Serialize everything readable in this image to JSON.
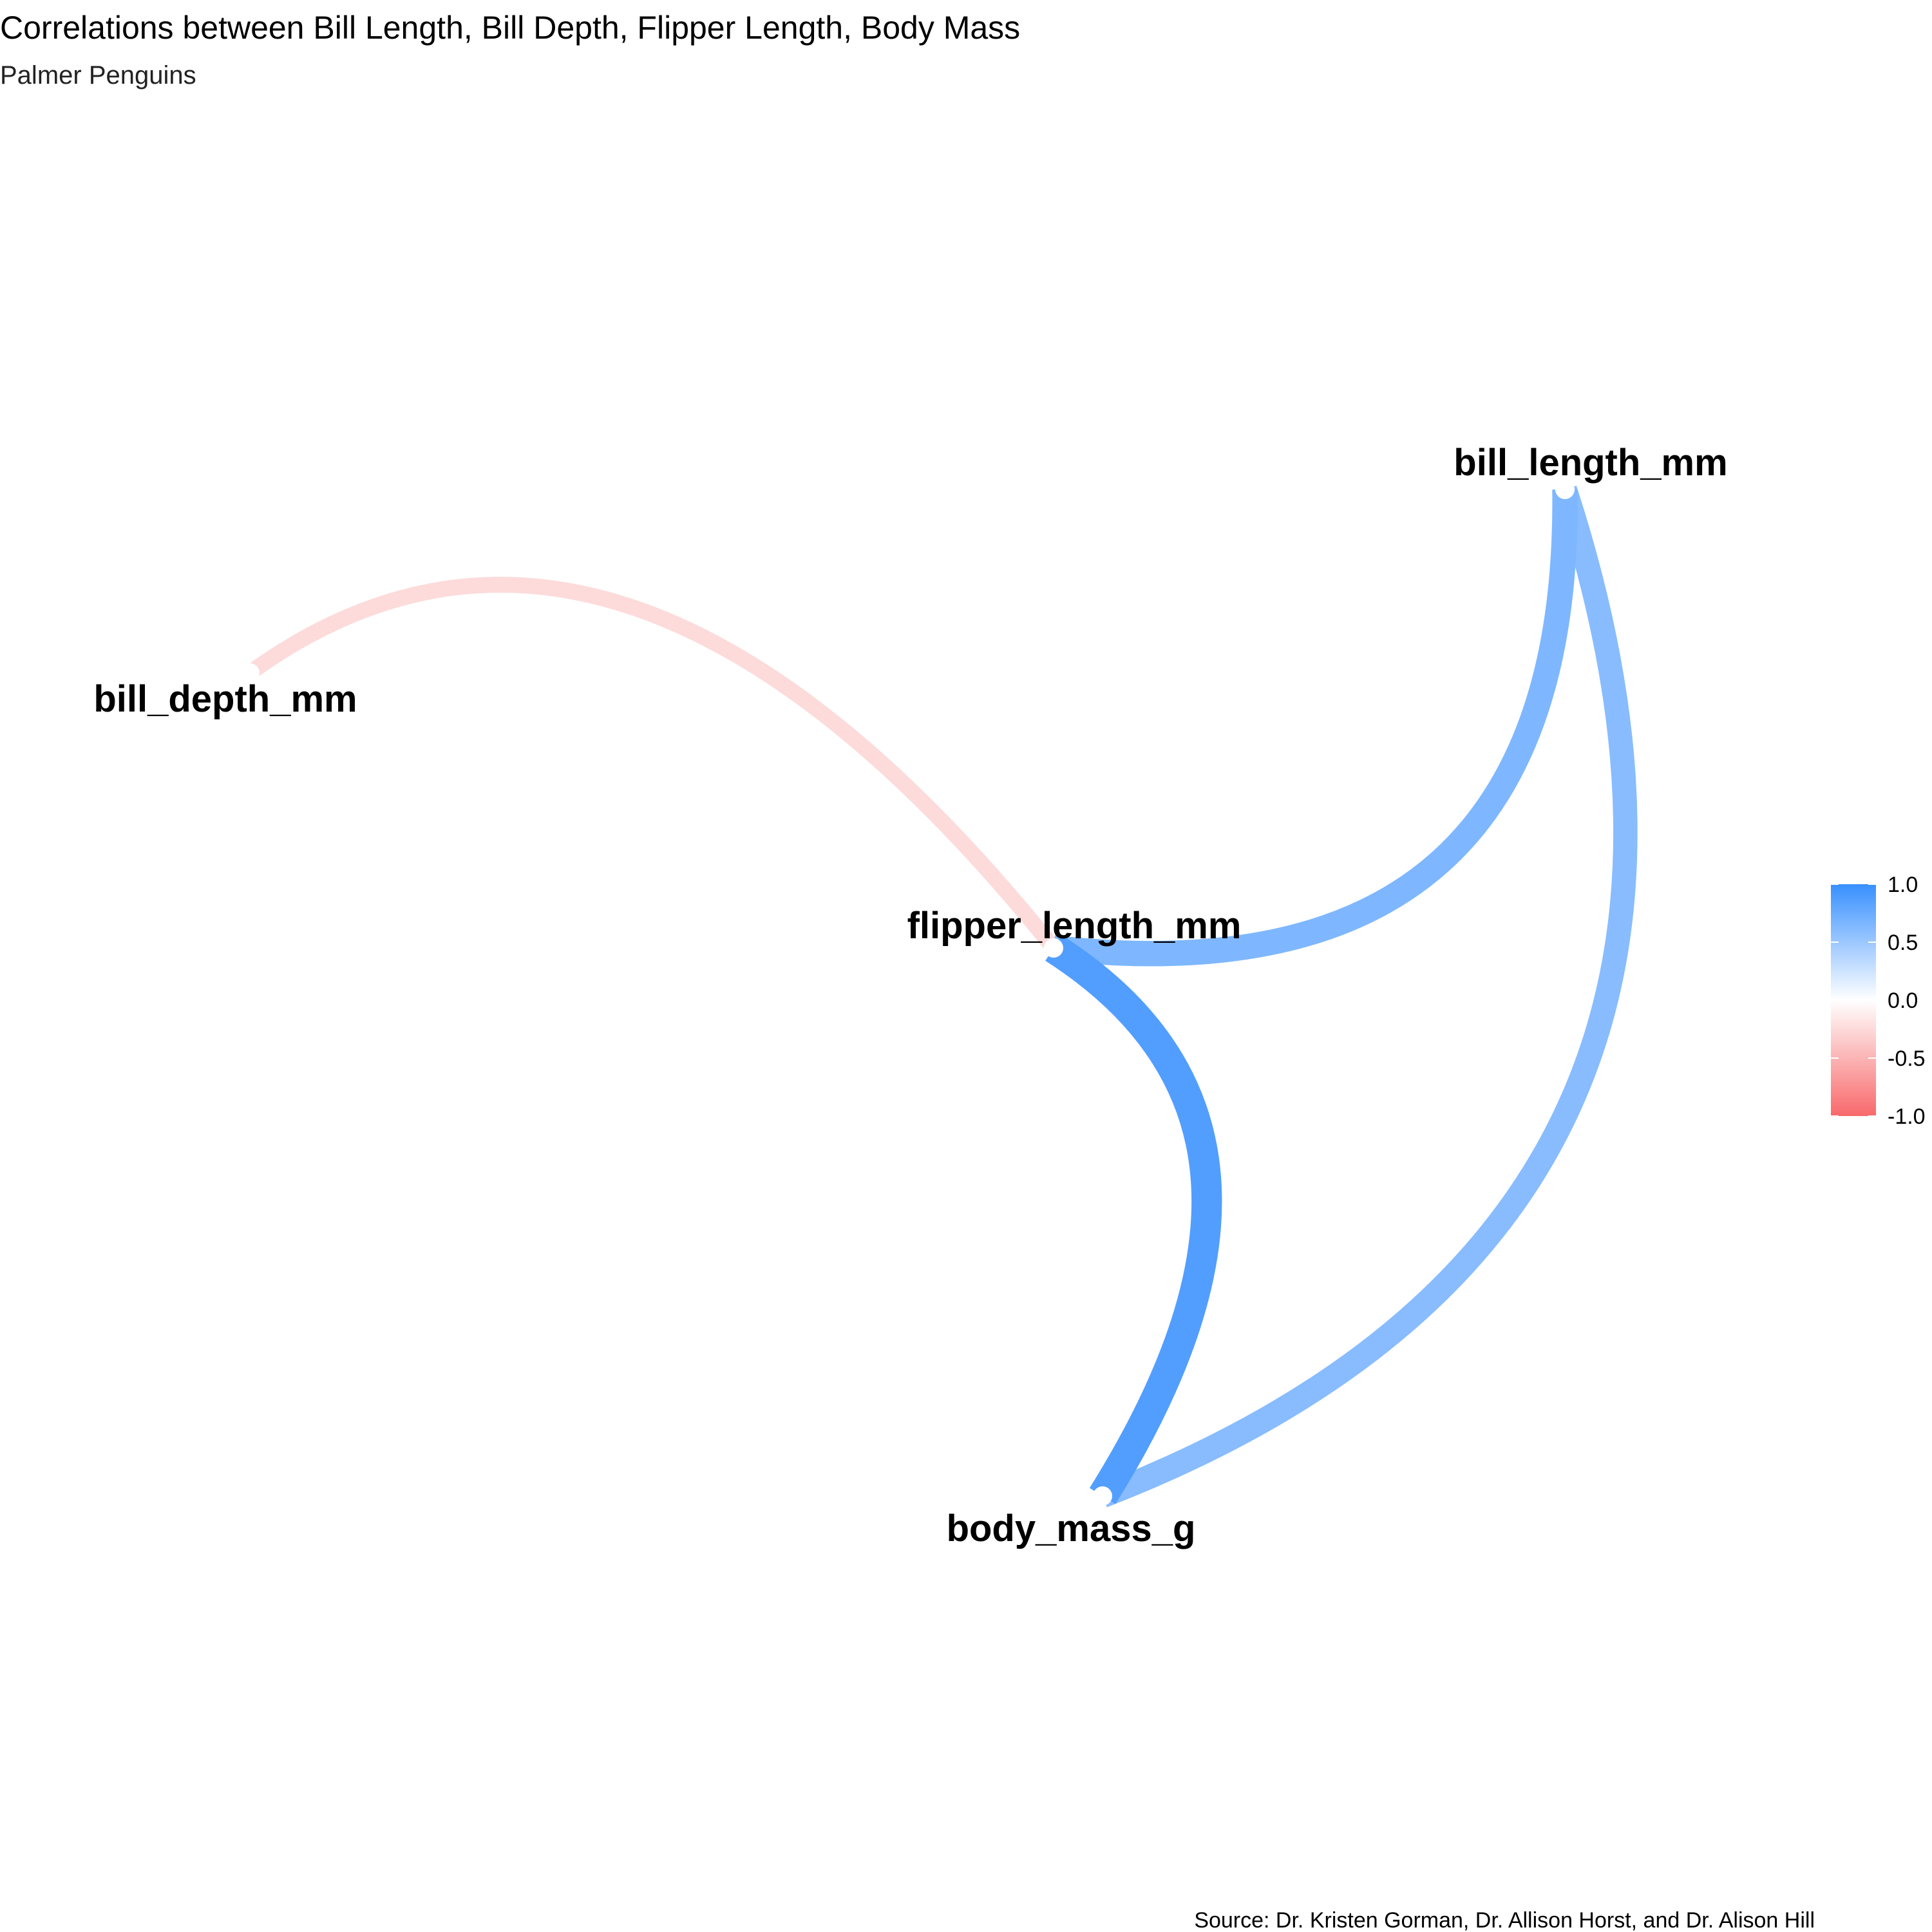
{
  "chart_data": {
    "type": "network",
    "title": "Correlations between Bill Length, Bill Depth, Flipper Length, Body Mass",
    "subtitle": "Palmer Penguins",
    "caption": "Source: Dr. Kristen Gorman, Dr. Allison Horst, and Dr. Alison Hill",
    "nodes": [
      "bill_length_mm",
      "bill_depth_mm",
      "flipper_length_mm",
      "body_mass_g"
    ],
    "edges": [
      {
        "from": "bill_depth_mm",
        "to": "flipper_length_mm",
        "correlation": -0.24
      },
      {
        "from": "bill_length_mm",
        "to": "flipper_length_mm",
        "correlation": 0.65
      },
      {
        "from": "bill_length_mm",
        "to": "body_mass_g",
        "correlation": 0.6
      },
      {
        "from": "flipper_length_mm",
        "to": "body_mass_g",
        "correlation": 0.87
      }
    ],
    "legend": {
      "position": "right",
      "range": [
        -1,
        1
      ],
      "ticks": [
        "1.0",
        "0.5",
        "0.0",
        "-0.5",
        "-1.0"
      ],
      "colors": {
        "low": "#f8696b",
        "mid": "#ffffff",
        "high": "#3890ff"
      }
    }
  }
}
